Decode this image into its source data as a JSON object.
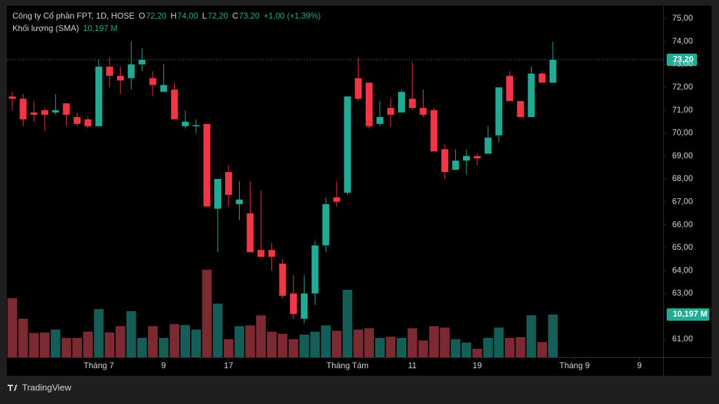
{
  "chart_data": {
    "type": "candlestick",
    "title": "Công ty Cổ phần FPT, 1D, HOSE",
    "legend": [
      {
        "key": "O",
        "value": "72,20"
      },
      {
        "key": "H",
        "value": "74,00"
      },
      {
        "key": "L",
        "value": "72,20"
      },
      {
        "key": "C",
        "value": "73,20"
      }
    ],
    "change": "+1,00 (+1,39%)",
    "volume_title": "Khối lượng (SMA)",
    "volume_legend_value": "10,197 M",
    "last_close_label": "73,20",
    "last_volume_label": "10,197 M",
    "brand": "TradingView",
    "up_color": "#22ab94",
    "down_color": "#f23645",
    "volume_up_color": "#145e57",
    "volume_down_color": "#7c2a31",
    "open": [
      71.6,
      71.5,
      70.9,
      71.0,
      70.9,
      71.3,
      70.7,
      70.6,
      70.3,
      72.9,
      72.5,
      72.4,
      73.0,
      72.4,
      71.8,
      71.9,
      70.3,
      70.3,
      70.4,
      66.7,
      68.3,
      66.9,
      66.5,
      64.9,
      64.9,
      64.3,
      63.0,
      61.9,
      63.0,
      65.1,
      67.2,
      67.4,
      72.4,
      72.2,
      70.4,
      71.1,
      70.9,
      71.5,
      71.1,
      71.0,
      69.3,
      68.4,
      68.8,
      69.0,
      69.1,
      69.9,
      72.5,
      71.4,
      70.7,
      72.6,
      72.2
    ],
    "high": [
      71.8,
      71.7,
      71.4,
      71.1,
      71.7,
      71.3,
      70.9,
      70.7,
      73.2,
      73.3,
      72.9,
      74.0,
      73.7,
      72.7,
      73.0,
      72.2,
      71.0,
      70.6,
      70.4,
      68.0,
      68.6,
      67.9,
      67.9,
      67.5,
      65.2,
      64.5,
      63.8,
      63.8,
      65.3,
      67.2,
      67.9,
      71.6,
      73.3,
      72.2,
      71.4,
      71.5,
      71.9,
      73.1,
      71.9,
      71.1,
      69.5,
      69.3,
      69.3,
      69.1,
      70.3,
      72.0,
      72.7,
      71.4,
      72.9,
      72.7,
      74.0
    ],
    "low": [
      71.0,
      70.3,
      70.5,
      70.1,
      70.8,
      70.3,
      70.3,
      70.2,
      70.3,
      72.0,
      71.7,
      71.9,
      72.7,
      71.6,
      71.8,
      70.6,
      70.2,
      70.0,
      66.8,
      64.8,
      66.8,
      66.2,
      64.8,
      64.6,
      64.0,
      62.8,
      61.9,
      61.7,
      62.5,
      64.8,
      66.8,
      67.3,
      71.4,
      70.2,
      70.3,
      70.3,
      70.9,
      71.0,
      70.7,
      69.2,
      68.0,
      68.4,
      68.2,
      68.6,
      69.1,
      69.6,
      71.4,
      70.7,
      70.7,
      72.2,
      72.2
    ],
    "close": [
      71.5,
      70.6,
      70.8,
      70.8,
      71.0,
      70.8,
      70.4,
      70.3,
      72.9,
      72.5,
      72.3,
      73.0,
      73.2,
      72.1,
      72.1,
      70.6,
      70.5,
      70.35,
      66.8,
      68.0,
      67.3,
      67.1,
      64.8,
      64.6,
      64.6,
      62.9,
      62.1,
      63.0,
      65.1,
      66.9,
      67.0,
      71.6,
      71.5,
      70.3,
      70.7,
      70.8,
      71.8,
      71.1,
      70.8,
      69.2,
      68.3,
      68.8,
      69.0,
      68.9,
      69.8,
      72.0,
      71.4,
      70.7,
      72.6,
      72.2,
      73.2
    ],
    "volume": [
      14.1,
      9.2,
      5.8,
      5.9,
      6.6,
      4.6,
      4.6,
      6.1,
      11.5,
      5.9,
      7.4,
      11.0,
      4.6,
      7.4,
      4.6,
      7.9,
      7.7,
      6.6,
      20.9,
      12.8,
      4.3,
      7.4,
      7.6,
      10.0,
      6.1,
      5.6,
      4.3,
      5.4,
      6.1,
      7.6,
      6.3,
      16.1,
      6.6,
      6.9,
      4.6,
      4.9,
      4.6,
      6.9,
      4.0,
      7.4,
      7.1,
      4.3,
      3.5,
      2.0,
      4.6,
      7.1,
      4.6,
      4.8,
      10.0,
      3.6,
      10.197
    ],
    "ylim": [
      60.22,
      75.57
    ],
    "yticks": [
      {
        "value": 61,
        "label": "61,00"
      },
      {
        "value": 63,
        "label": "63,00"
      },
      {
        "value": 64,
        "label": "64,00"
      },
      {
        "value": 65,
        "label": "65,00"
      },
      {
        "value": 66,
        "label": "66,00"
      },
      {
        "value": 67,
        "label": "67,00"
      },
      {
        "value": 68,
        "label": "68,00"
      },
      {
        "value": 69,
        "label": "69,00"
      },
      {
        "value": 70,
        "label": "70,00"
      },
      {
        "value": 71,
        "label": "71,00"
      },
      {
        "value": 72,
        "label": "72,00"
      },
      {
        "value": 73,
        "label": "73,00"
      },
      {
        "value": 74,
        "label": "74,00"
      },
      {
        "value": 75,
        "label": "75,00"
      }
    ],
    "vlim": [
      0,
      84
    ],
    "xlim": [
      -0.5,
      60.2
    ],
    "xticks": [
      {
        "value": 8,
        "label": "Tháng 7"
      },
      {
        "value": 14,
        "label": "9"
      },
      {
        "value": 20,
        "label": "17"
      },
      {
        "value": 31,
        "label": "Tháng Tám"
      },
      {
        "value": 37,
        "label": "11"
      },
      {
        "value": 43,
        "label": "19"
      },
      {
        "value": 52,
        "label": "Tháng 9"
      },
      {
        "value": 58,
        "label": "9"
      }
    ]
  }
}
